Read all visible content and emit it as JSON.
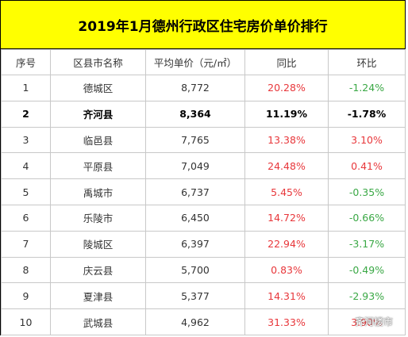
{
  "title": "2019年1月德州行政区住宅房价单价排行",
  "headers": [
    "序号",
    "区县市名称",
    "平均单价（元/㎡）",
    "同比",
    "环比"
  ],
  "rows": [
    {
      "rank": "1",
      "name": "德城区",
      "price": "8,772",
      "yoy": "20.28%",
      "mom": "-1.24%"
    },
    {
      "rank": "2",
      "name": "齐河县",
      "price": "8,364",
      "yoy": "11.19%",
      "mom": "-1.78%"
    },
    {
      "rank": "3",
      "name": "临邑县",
      "price": "7,765",
      "yoy": "13.38%",
      "mom": "3.10%"
    },
    {
      "rank": "4",
      "name": "平原县",
      "price": "7,049",
      "yoy": "24.48%",
      "mom": "0.41%"
    },
    {
      "rank": "5",
      "name": "禹城市",
      "price": "6,737",
      "yoy": "5.45%",
      "mom": "-0.35%"
    },
    {
      "rank": "6",
      "name": "乐陵市",
      "price": "6,450",
      "yoy": "14.72%",
      "mom": "-0.66%"
    },
    {
      "rank": "7",
      "name": "陵城区",
      "price": "6,397",
      "yoy": "22.94%",
      "mom": "-3.17%"
    },
    {
      "rank": "8",
      "name": "庆云县",
      "price": "5,700",
      "yoy": "0.83%",
      "mom": "-0.49%"
    },
    {
      "rank": "9",
      "name": "夏津县",
      "price": "5,377",
      "yoy": "14.31%",
      "mom": "-2.93%"
    },
    {
      "rank": "10",
      "name": "武城县",
      "price": "4,962",
      "yoy": "31.33%",
      "mom": "3.90%"
    }
  ],
  "watermark": "齐河楼市",
  "watermark_icon": "wechat-icon",
  "colors": {
    "title_bg": "#ffff00",
    "positive": "#e8373b",
    "negative": "#3aa845"
  }
}
